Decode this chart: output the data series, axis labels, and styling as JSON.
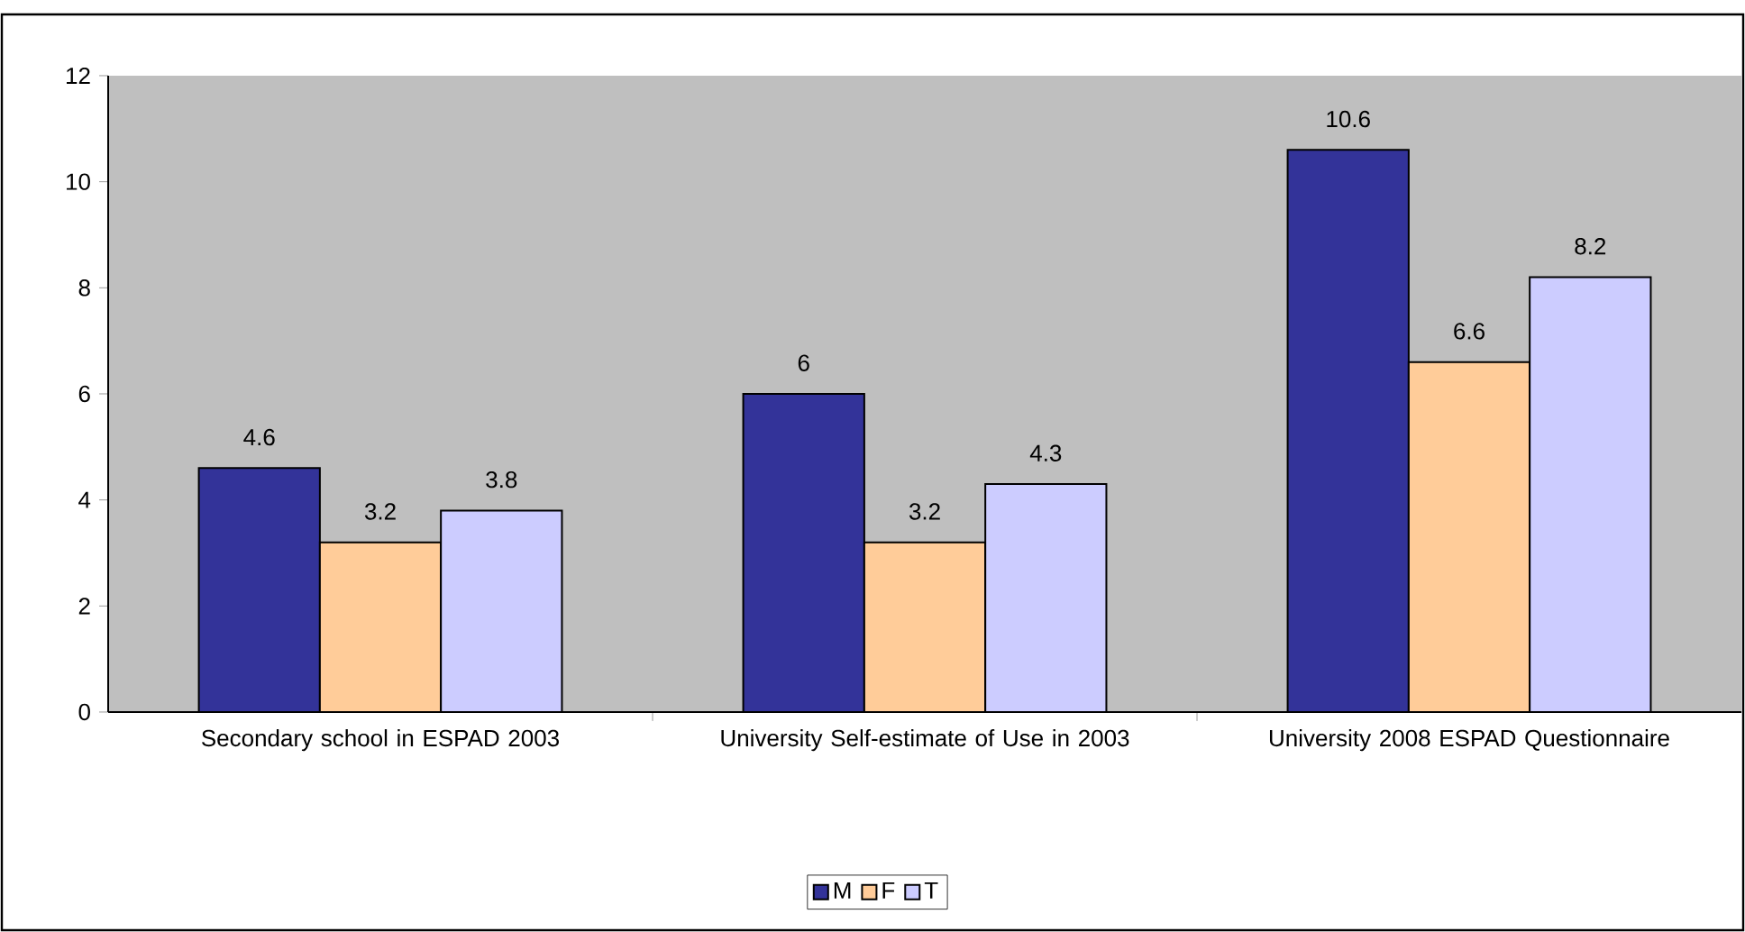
{
  "chart_data": {
    "type": "bar",
    "categories": [
      "Secondary school in ESPAD 2003",
      "University Self-estimate of Use in 2003",
      "University 2008 ESPAD Questionnaire"
    ],
    "series": [
      {
        "name": "M",
        "color": "#333399",
        "values": [
          4.6,
          6,
          10.6
        ]
      },
      {
        "name": "F",
        "color": "#ffcc99",
        "values": [
          3.2,
          3.2,
          6.6
        ]
      },
      {
        "name": "T",
        "color": "#ccccff",
        "values": [
          3.8,
          4.3,
          8.2
        ]
      }
    ],
    "ylim": [
      0,
      12
    ],
    "yticks": [
      0,
      2,
      4,
      6,
      8,
      10,
      12
    ],
    "data_labels": true,
    "legend": "bottom",
    "grid": false
  }
}
